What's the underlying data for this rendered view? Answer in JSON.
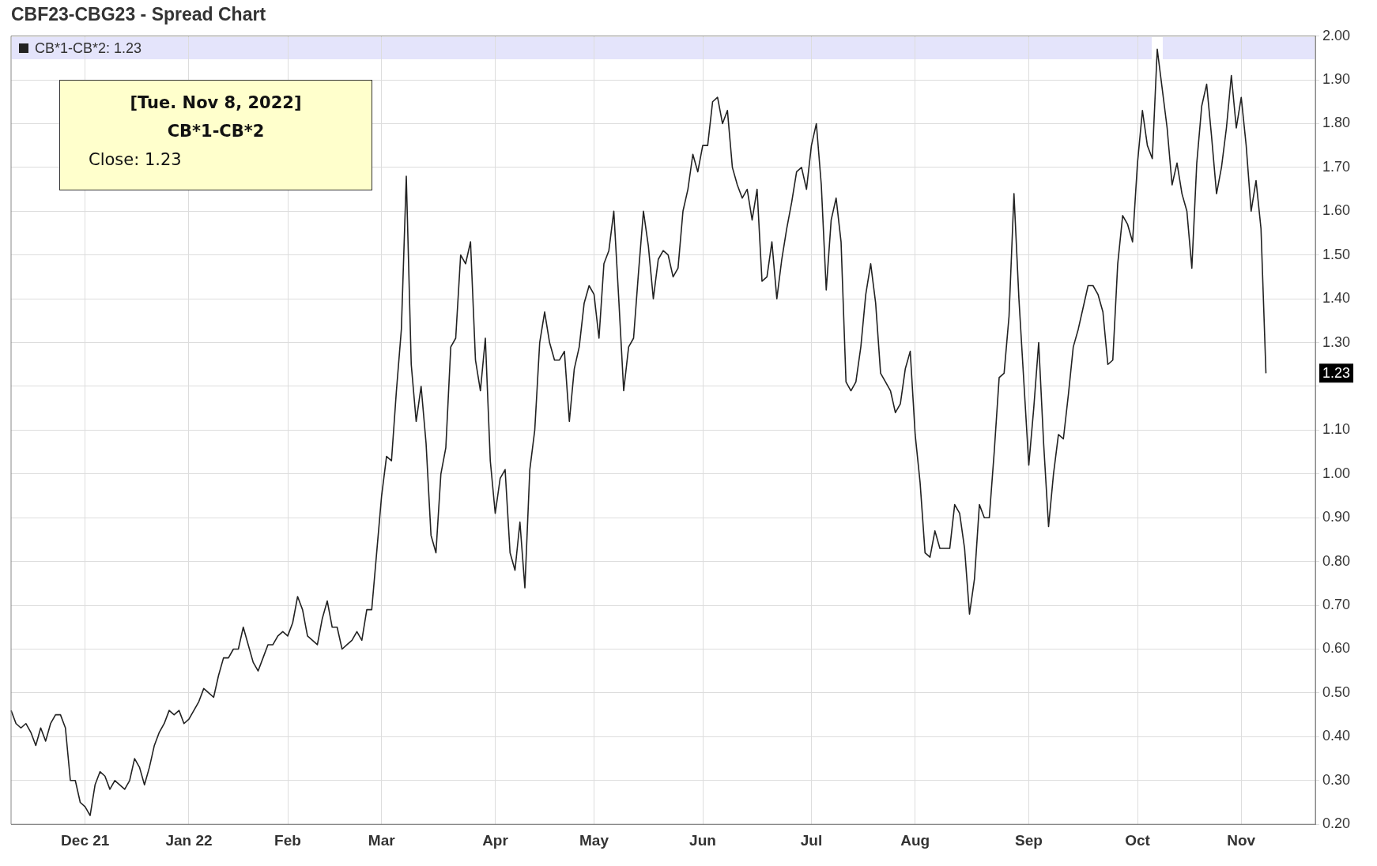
{
  "chart_data": {
    "type": "line",
    "title": "CBF23-CBG23 - Spread Chart",
    "categories": [
      null,
      null,
      null,
      null,
      null,
      null,
      null,
      null,
      null,
      null,
      null,
      null,
      null,
      null,
      null,
      "Dec 21",
      null,
      null,
      null,
      null,
      null,
      null,
      null,
      null,
      null,
      null,
      null,
      null,
      null,
      null,
      null,
      null,
      null,
      null,
      null,
      null,
      "Jan 22",
      null,
      null,
      null,
      null,
      null,
      null,
      null,
      null,
      null,
      null,
      null,
      null,
      null,
      null,
      null,
      null,
      null,
      null,
      null,
      "Feb",
      null,
      null,
      null,
      null,
      null,
      null,
      null,
      null,
      null,
      null,
      null,
      null,
      null,
      null,
      null,
      null,
      null,
      null,
      "Mar",
      null,
      null,
      null,
      null,
      null,
      null,
      null,
      null,
      null,
      null,
      null,
      null,
      null,
      null,
      null,
      null,
      null,
      null,
      null,
      null,
      null,
      null,
      "Apr",
      null,
      null,
      null,
      null,
      null,
      null,
      null,
      null,
      null,
      null,
      null,
      null,
      null,
      null,
      null,
      null,
      null,
      null,
      null,
      "May",
      null,
      null,
      null,
      null,
      null,
      null,
      null,
      null,
      null,
      null,
      null,
      null,
      null,
      null,
      null,
      null,
      null,
      null,
      null,
      null,
      null,
      "Jun",
      null,
      null,
      null,
      null,
      null,
      null,
      null,
      null,
      null,
      null,
      null,
      null,
      null,
      null,
      null,
      null,
      null,
      null,
      null,
      null,
      null,
      "Jul",
      null,
      null,
      null,
      null,
      null,
      null,
      null,
      null,
      null,
      null,
      null,
      null,
      null,
      null,
      null,
      null,
      null,
      null,
      null,
      null,
      "Aug",
      null,
      null,
      null,
      null,
      null,
      null,
      null,
      null,
      null,
      null,
      null,
      null,
      null,
      null,
      null,
      null,
      null,
      null,
      null,
      null,
      null,
      null,
      "Sep",
      null,
      null,
      null,
      null,
      null,
      null,
      null,
      null,
      null,
      null,
      null,
      null,
      null,
      null,
      null,
      null,
      null,
      null,
      null,
      null,
      null,
      "Oct",
      null,
      null,
      null,
      null,
      null,
      null,
      null,
      null,
      null,
      null,
      null,
      null,
      null,
      null,
      null,
      null,
      null,
      null,
      null,
      null,
      "Nov",
      null,
      null,
      null,
      null,
      null,
      null,
      null,
      null,
      null,
      null,
      null,
      null,
      null,
      null,
      null
    ],
    "series": [
      {
        "name": "CB*1-CB*2: 1.23",
        "color": "#222222",
        "values": [
          0.46,
          0.43,
          0.42,
          0.43,
          0.41,
          0.38,
          0.42,
          0.39,
          0.43,
          0.45,
          0.45,
          0.42,
          0.3,
          0.3,
          0.25,
          0.24,
          0.22,
          0.29,
          0.32,
          0.31,
          0.28,
          0.3,
          0.29,
          0.28,
          0.3,
          0.35,
          0.33,
          0.29,
          0.33,
          0.38,
          0.41,
          0.43,
          0.46,
          0.45,
          0.46,
          0.43,
          0.44,
          0.46,
          0.48,
          0.51,
          0.5,
          0.49,
          0.54,
          0.58,
          0.58,
          0.6,
          0.6,
          0.65,
          0.61,
          0.57,
          0.55,
          0.58,
          0.61,
          0.61,
          0.63,
          0.64,
          0.63,
          0.66,
          0.72,
          0.69,
          0.63,
          0.62,
          0.61,
          0.67,
          0.71,
          0.65,
          0.65,
          0.6,
          0.61,
          0.62,
          0.64,
          0.62,
          0.69,
          0.69,
          0.82,
          0.95,
          1.04,
          1.03,
          1.19,
          1.33,
          1.68,
          1.25,
          1.12,
          1.2,
          1.07,
          0.86,
          0.82,
          1.0,
          1.06,
          1.29,
          1.31,
          1.5,
          1.48,
          1.53,
          1.26,
          1.19,
          1.31,
          1.03,
          0.91,
          0.99,
          1.01,
          0.82,
          0.78,
          0.89,
          0.74,
          1.01,
          1.1,
          1.3,
          1.37,
          1.3,
          1.26,
          1.26,
          1.28,
          1.12,
          1.24,
          1.29,
          1.39,
          1.43,
          1.41,
          1.31,
          1.48,
          1.51,
          1.6,
          1.4,
          1.19,
          1.29,
          1.31,
          1.46,
          1.6,
          1.52,
          1.4,
          1.49,
          1.51,
          1.5,
          1.45,
          1.47,
          1.6,
          1.65,
          1.73,
          1.69,
          1.75,
          1.75,
          1.85,
          1.86,
          1.8,
          1.83,
          1.7,
          1.66,
          1.63,
          1.65,
          1.58,
          1.65,
          1.44,
          1.45,
          1.53,
          1.4,
          1.49,
          1.56,
          1.62,
          1.69,
          1.7,
          1.65,
          1.75,
          1.8,
          1.66,
          1.42,
          1.58,
          1.63,
          1.53,
          1.21,
          1.19,
          1.21,
          1.29,
          1.41,
          1.48,
          1.39,
          1.23,
          1.21,
          1.19,
          1.14,
          1.16,
          1.24,
          1.28,
          1.09,
          0.98,
          0.82,
          0.81,
          0.87,
          0.83,
          0.83,
          0.83,
          0.93,
          0.91,
          0.83,
          0.68,
          0.76,
          0.93,
          0.9,
          0.9,
          1.05,
          1.22,
          1.23,
          1.36,
          1.64,
          1.4,
          1.21,
          1.02,
          1.15,
          1.3,
          1.07,
          0.88,
          1.0,
          1.09,
          1.08,
          1.18,
          1.29,
          1.33,
          1.38,
          1.43,
          1.43,
          1.41,
          1.37,
          1.25,
          1.26,
          1.48,
          1.59,
          1.57,
          1.53,
          1.71,
          1.83,
          1.75,
          1.72,
          1.97,
          1.88,
          1.79,
          1.66,
          1.71,
          1.64,
          1.6,
          1.47,
          1.71,
          1.84,
          1.89,
          1.77,
          1.64,
          1.7,
          1.79,
          1.91,
          1.79,
          1.86,
          1.75,
          1.6,
          1.67,
          1.56,
          1.23,
          null,
          null,
          null,
          null,
          null,
          null,
          null,
          null,
          null,
          null
        ]
      }
    ],
    "ylim": [
      0.2,
      2.0
    ],
    "yticks": [
      {
        "value": 0.2,
        "label": "0.20"
      },
      {
        "value": 0.3,
        "label": "0.30"
      },
      {
        "value": 0.4,
        "label": "0.40"
      },
      {
        "value": 0.5,
        "label": "0.50"
      },
      {
        "value": 0.6,
        "label": "0.60"
      },
      {
        "value": 0.7,
        "label": "0.70"
      },
      {
        "value": 0.8,
        "label": "0.80"
      },
      {
        "value": 0.9,
        "label": "0.90"
      },
      {
        "value": 1.0,
        "label": "1.00"
      },
      {
        "value": 1.1,
        "label": "1.10"
      },
      {
        "value": 1.2,
        "label": null
      },
      {
        "value": 1.3,
        "label": "1.30"
      },
      {
        "value": 1.4,
        "label": "1.40"
      },
      {
        "value": 1.5,
        "label": "1.50"
      },
      {
        "value": 1.6,
        "label": "1.60"
      },
      {
        "value": 1.7,
        "label": "1.70"
      },
      {
        "value": 1.8,
        "label": "1.80"
      },
      {
        "value": 1.9,
        "label": "1.90"
      },
      {
        "value": 2.0,
        "label": "2.00"
      }
    ],
    "annotations": [
      "[Tue. Nov 8, 2022]",
      "CB*1-CB*2",
      "Close: 1.23",
      "1.23"
    ],
    "grid": true,
    "legend": "top left",
    "marker": "none",
    "line_style": "solid"
  }
}
